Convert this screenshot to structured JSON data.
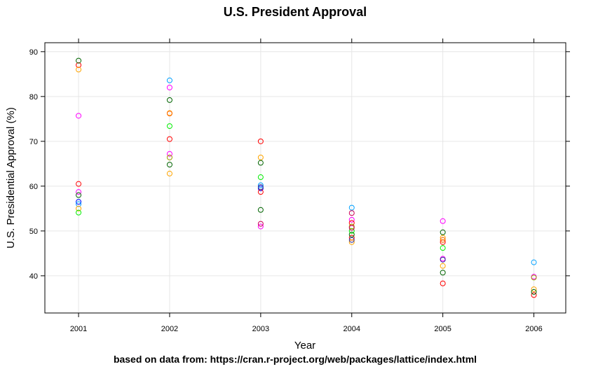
{
  "chart_data": {
    "type": "scatter",
    "title": "U.S. President Approval",
    "xlabel": "Year",
    "ylabel": "U.S. Presidential Approval (%)",
    "caption": "based on data from: https://cran.r-project.org/web/packages/lattice/index.html",
    "xlim": [
      2000.63,
      2006.35
    ],
    "ylim": [
      31.7,
      92.0
    ],
    "x_ticks": [
      2001,
      2002,
      2003,
      2004,
      2005,
      2006
    ],
    "y_ticks": [
      40,
      50,
      60,
      70,
      80,
      90
    ],
    "grid": true,
    "legend": "none",
    "series": [
      {
        "color": "#0000ff",
        "points": [
          [
            2001,
            56.5
          ],
          [
            2003,
            59.5
          ]
        ]
      },
      {
        "color": "#ff00ff",
        "points": [
          [
            2001,
            75.7
          ],
          [
            2001,
            58.7
          ],
          [
            2002,
            82.0
          ],
          [
            2002,
            67.2
          ],
          [
            2003,
            51.0
          ],
          [
            2004,
            52.5
          ],
          [
            2005,
            52.2
          ],
          [
            2005,
            43.8
          ],
          [
            2006,
            39.8
          ]
        ]
      },
      {
        "color": "#00a0ff",
        "points": [
          [
            2001,
            56.0
          ],
          [
            2002,
            83.6
          ],
          [
            2003,
            60.2
          ],
          [
            2004,
            55.2
          ],
          [
            2006,
            43.0
          ]
        ]
      },
      {
        "color": "#ff0000",
        "points": [
          [
            2001,
            87.0
          ],
          [
            2001,
            60.5
          ],
          [
            2002,
            70.5
          ],
          [
            2003,
            70.0
          ],
          [
            2003,
            58.7
          ],
          [
            2004,
            51.8
          ],
          [
            2004,
            48.5
          ],
          [
            2005,
            47.5
          ],
          [
            2005,
            38.3
          ],
          [
            2006,
            35.7
          ]
        ]
      },
      {
        "color": "#ffa500",
        "points": [
          [
            2001,
            86.0
          ],
          [
            2001,
            55.0
          ],
          [
            2002,
            76.3
          ],
          [
            2002,
            62.8
          ],
          [
            2003,
            66.4
          ],
          [
            2004,
            47.5
          ],
          [
            2005,
            48.5
          ],
          [
            2005,
            42.2
          ],
          [
            2006,
            37.0
          ]
        ]
      },
      {
        "color": "#006400",
        "points": [
          [
            2001,
            88.0
          ],
          [
            2001,
            58.0
          ],
          [
            2002,
            79.2
          ],
          [
            2002,
            64.8
          ],
          [
            2003,
            65.2
          ],
          [
            2003,
            54.7
          ],
          [
            2004,
            49.2
          ],
          [
            2005,
            49.7
          ],
          [
            2005,
            40.7
          ],
          [
            2006,
            36.4
          ]
        ]
      },
      {
        "color": "#00ee00",
        "points": [
          [
            2001,
            54.1
          ],
          [
            2002,
            73.4
          ],
          [
            2003,
            62.0
          ],
          [
            2004,
            50.0
          ],
          [
            2005,
            46.2
          ]
        ]
      },
      {
        "color": "#a0a000",
        "points": [
          [
            2002,
            66.4
          ],
          [
            2004,
            51.0
          ],
          [
            2006,
            39.6
          ]
        ]
      },
      {
        "color": "#cc0055",
        "points": [
          [
            2003,
            51.6
          ],
          [
            2004,
            54.0
          ],
          [
            2004,
            50.7
          ]
        ]
      },
      {
        "color": "#ff6600",
        "points": [
          [
            2002,
            76.2
          ],
          [
            2005,
            48.0
          ]
        ]
      },
      {
        "color": "#333399",
        "points": [
          [
            2003,
            59.8
          ],
          [
            2005,
            43.6
          ],
          [
            2004,
            48.0
          ]
        ]
      }
    ]
  }
}
